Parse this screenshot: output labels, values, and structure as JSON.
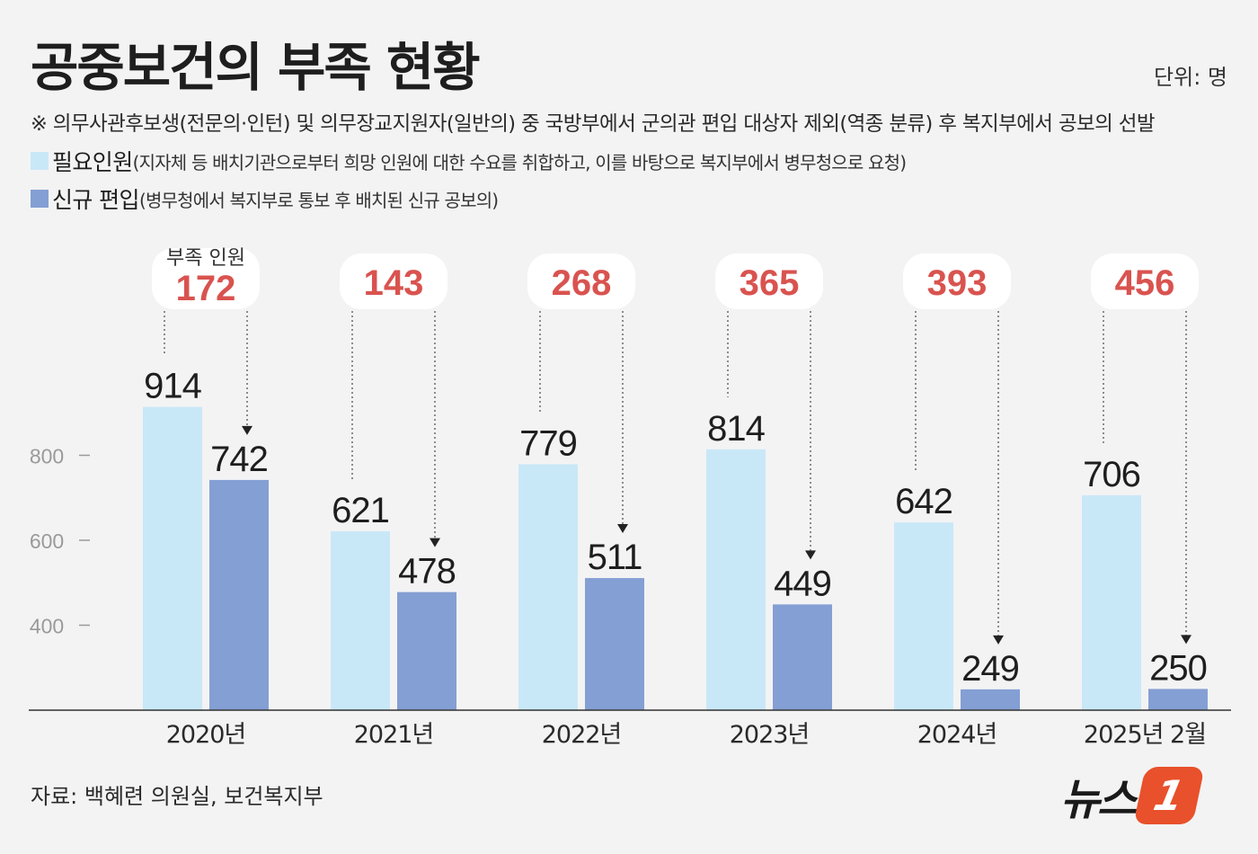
{
  "title": "공중보건의 부족 현황",
  "unit": "단위: 명",
  "note": "※ 의무사관후보생(전문의·인턴) 및 의무장교지원자(일반의) 중 국방부에서 군의관 편입 대상자 제외(역종 분류) 후 복지부에서 공보의 선발",
  "legend": [
    {
      "name": "필요인원",
      "desc": "(지자체 등 배치기관으로부터 희망 인원에 대한 수요를 취합하고, 이를 바탕으로 복지부에서 병무청으로 요청)",
      "color": "#c9e8f7"
    },
    {
      "name": "신규 편입",
      "desc": "(병무청에서 복지부로 통보 후 배치된 신규 공보의)",
      "color": "#849fd3"
    }
  ],
  "shortage_label": "부족 인원",
  "source": "자료: 백혜련 의원실, 보건복지부",
  "logo": {
    "text": "뉴스",
    "mark": "1",
    "color": "#e8512b"
  },
  "colors": {
    "needed": "#c9e8f7",
    "new": "#849fd3",
    "shortage": "#d9534f"
  },
  "chart_data": {
    "type": "bar",
    "categories": [
      "2020년",
      "2021년",
      "2022년",
      "2023년",
      "2024년",
      "2025년 2월"
    ],
    "series": [
      {
        "name": "필요인원",
        "values": [
          914,
          621,
          779,
          814,
          642,
          706
        ]
      },
      {
        "name": "신규 편입",
        "values": [
          742,
          478,
          511,
          449,
          249,
          250
        ]
      }
    ],
    "shortage": [
      172,
      143,
      268,
      365,
      393,
      456
    ],
    "yticks": [
      400,
      600,
      800
    ],
    "ylim": [
      200,
      1050
    ],
    "grid": false,
    "legend_position": "top-left"
  }
}
